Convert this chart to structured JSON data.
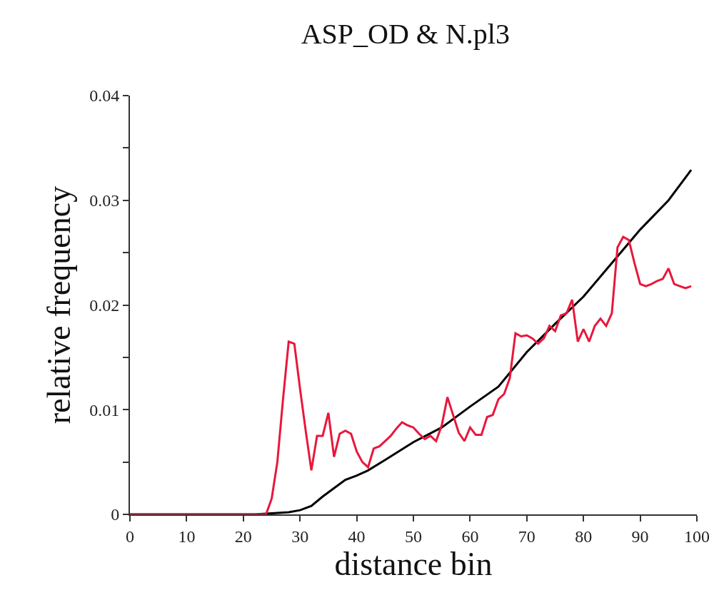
{
  "chart_data": {
    "type": "line",
    "title": "ASP_OD & N.pl3",
    "xlabel": "distance bin",
    "ylabel": "relative frequency",
    "xlim": [
      0,
      100
    ],
    "xticks": [
      0,
      10,
      20,
      30,
      40,
      50,
      60,
      70,
      80,
      90,
      100
    ],
    "ylim": [
      0,
      0.04
    ],
    "yticks": [
      0,
      {
        "value": 0.005,
        "label": null
      },
      0.01,
      {
        "value": 0.015,
        "label": null
      },
      0.02,
      {
        "value": 0.025,
        "label": null
      },
      0.03,
      {
        "value": 0.035,
        "label": null
      },
      0.04
    ],
    "marker": "none",
    "line_style": "solid",
    "series": [
      {
        "color": "#000000",
        "x": [
          0,
          22,
          25,
          28,
          30,
          32,
          34,
          36,
          38,
          40,
          42,
          45,
          50,
          55,
          60,
          65,
          70,
          75,
          80,
          85,
          90,
          95,
          99
        ],
        "values": [
          0,
          0,
          0.0001,
          0.0002,
          0.0004,
          0.0008,
          0.0017,
          0.0025,
          0.0033,
          0.0037,
          0.0042,
          0.0052,
          0.0069,
          0.0083,
          0.0103,
          0.0122,
          0.0155,
          0.0182,
          0.0208,
          0.024,
          0.0272,
          0.03,
          0.0329
        ]
      },
      {
        "color": "#e8173c",
        "x": [
          0,
          24,
          25,
          26,
          27,
          28,
          29,
          30,
          31,
          32,
          33,
          34,
          35,
          36,
          37,
          38,
          39,
          40,
          41,
          42,
          43,
          44,
          45,
          46,
          47,
          48,
          49,
          50,
          51,
          52,
          53,
          54,
          55,
          56,
          57,
          58,
          59,
          60,
          61,
          62,
          63,
          64,
          65,
          66,
          67,
          68,
          69,
          70,
          71,
          72,
          73,
          74,
          75,
          76,
          77,
          78,
          79,
          80,
          81,
          82,
          83,
          84,
          85,
          86,
          87,
          88,
          89,
          90,
          91,
          92,
          93,
          94,
          95,
          96,
          97,
          98,
          99
        ],
        "values": [
          0,
          0,
          0.0015,
          0.005,
          0.011,
          0.0165,
          0.0163,
          0.012,
          0.008,
          0.0042,
          0.0075,
          0.0075,
          0.0097,
          0.0055,
          0.0077,
          0.008,
          0.0077,
          0.006,
          0.005,
          0.0045,
          0.0063,
          0.0065,
          0.007,
          0.0075,
          0.0082,
          0.0088,
          0.0085,
          0.0083,
          0.0077,
          0.0072,
          0.0075,
          0.007,
          0.0085,
          0.0112,
          0.0095,
          0.0078,
          0.007,
          0.0083,
          0.0076,
          0.0076,
          0.0093,
          0.0095,
          0.011,
          0.0115,
          0.013,
          0.0173,
          0.017,
          0.0171,
          0.0168,
          0.0163,
          0.0168,
          0.018,
          0.0175,
          0.019,
          0.0192,
          0.0205,
          0.0165,
          0.0177,
          0.0165,
          0.018,
          0.0187,
          0.018,
          0.0192,
          0.0255,
          0.0265,
          0.0262,
          0.024,
          0.022,
          0.0218,
          0.022,
          0.0223,
          0.0225,
          0.0235,
          0.022,
          0.0218,
          0.0216,
          0.0218
        ]
      }
    ]
  }
}
